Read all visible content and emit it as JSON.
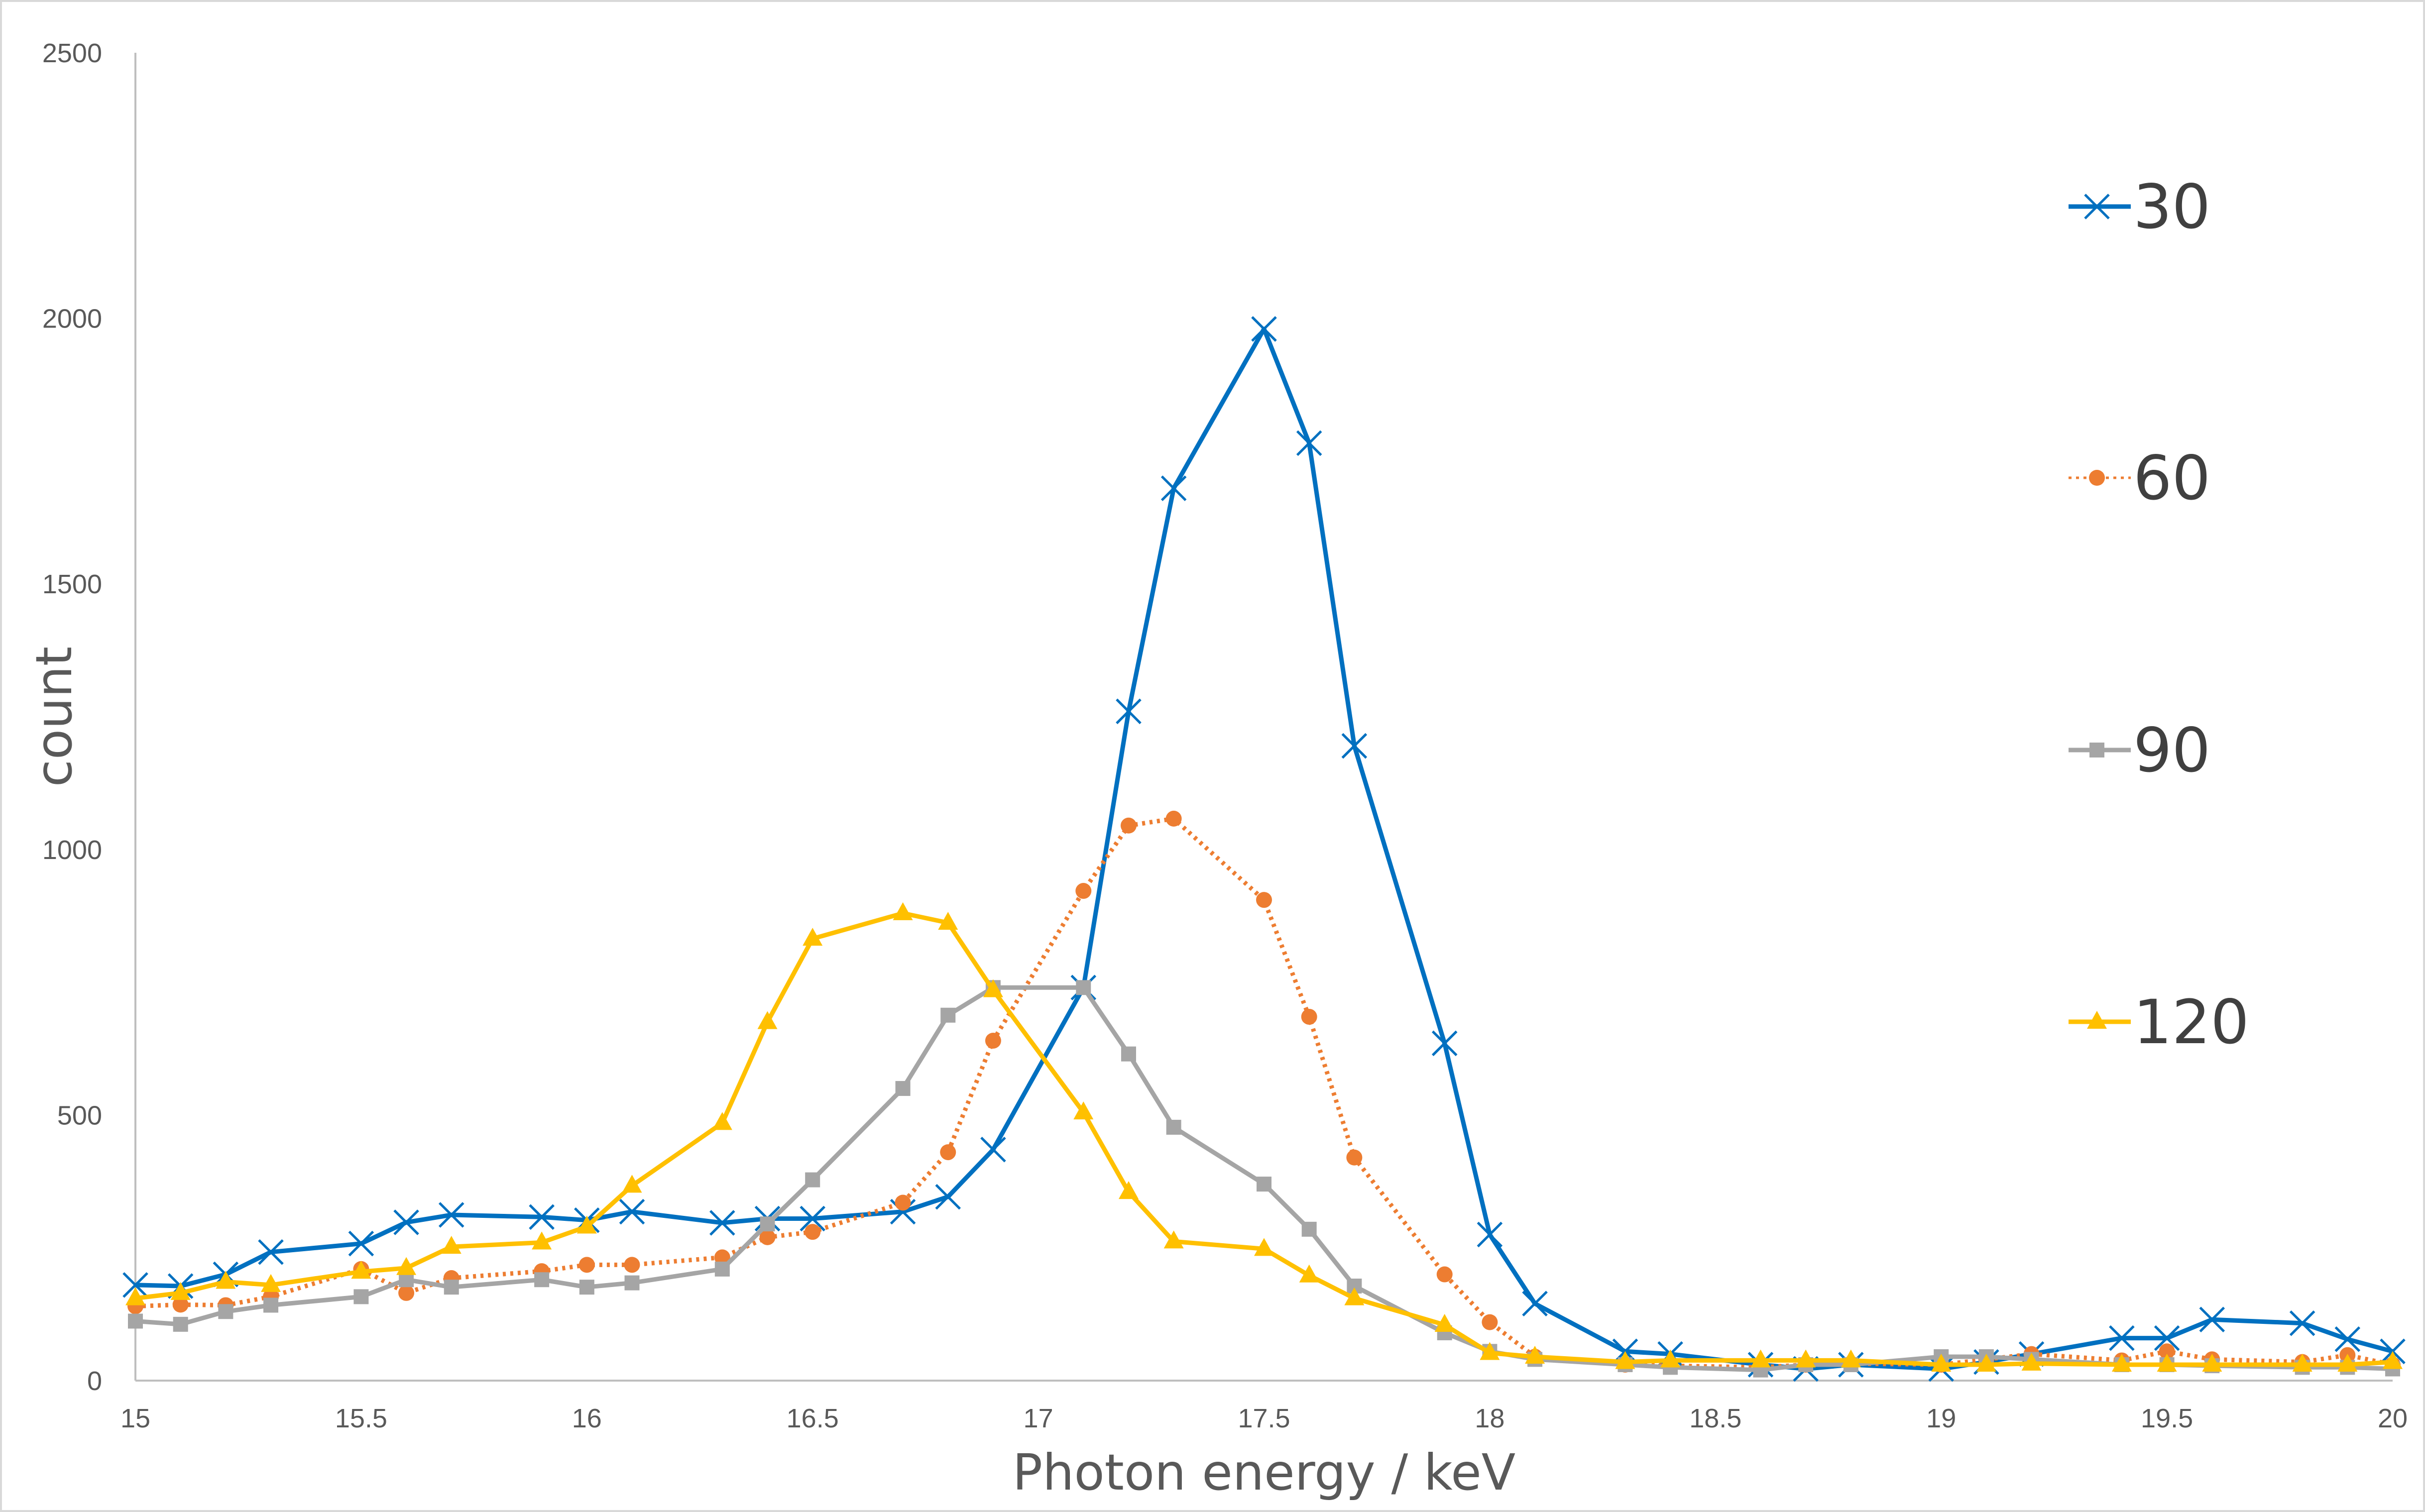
{
  "chart_data": {
    "type": "line",
    "title": "",
    "xlabel": "Photon energy / keV",
    "ylabel": "count",
    "xlim": [
      15,
      20
    ],
    "ylim": [
      0,
      2500
    ],
    "x_ticks": [
      "15",
      "15.5",
      "16",
      "16.5",
      "17",
      "17.5",
      "18",
      "18.5",
      "19",
      "19.5",
      "20"
    ],
    "y_ticks": [
      "0",
      "500",
      "1000",
      "1500",
      "2000",
      "2500"
    ],
    "grid": false,
    "legend_position": "right",
    "series": [
      {
        "name": "30",
        "color": "#0070c0",
        "marker": "x",
        "line_style": "solid",
        "x": [
          15,
          15.1,
          15.2,
          15.3,
          15.5,
          15.6,
          15.7,
          15.9,
          16,
          16.1,
          16.3,
          16.4,
          16.5,
          16.7,
          16.8,
          16.9,
          17.1,
          17.2,
          17.3,
          17.5,
          17.6,
          17.7,
          17.9,
          18,
          18.1,
          18.3,
          18.4,
          18.6,
          18.7,
          18.8,
          19,
          19.1,
          19.2,
          19.4,
          19.5,
          19.6,
          19.8,
          19.9,
          20
        ],
        "y": [
          180,
          178,
          200,
          242,
          258,
          298,
          312,
          308,
          302,
          318,
          297,
          305,
          305,
          318,
          346,
          435,
          740,
          1260,
          1680,
          1980,
          1765,
          1195,
          635,
          275,
          145,
          55,
          50,
          30,
          22,
          30,
          22,
          35,
          50,
          80,
          80,
          115,
          108,
          78,
          55
        ]
      },
      {
        "name": "60",
        "color": "#ed7d31",
        "marker": "circle",
        "line_style": "dotted",
        "x": [
          15,
          15.1,
          15.2,
          15.3,
          15.5,
          15.6,
          15.7,
          15.9,
          16,
          16.1,
          16.3,
          16.4,
          16.5,
          16.7,
          16.8,
          16.9,
          17.1,
          17.2,
          17.3,
          17.5,
          17.6,
          17.7,
          17.9,
          18,
          18.1,
          18.3,
          18.4,
          18.6,
          18.7,
          18.8,
          19,
          19.1,
          19.2,
          19.4,
          19.5,
          19.6,
          19.8,
          19.9,
          20
        ],
        "y": [
          140,
          143,
          142,
          158,
          210,
          165,
          193,
          206,
          218,
          218,
          232,
          270,
          280,
          335,
          430,
          640,
          922,
          1045,
          1058,
          905,
          685,
          420,
          200,
          110,
          45,
          30,
          28,
          25,
          30,
          32,
          30,
          40,
          50,
          38,
          55,
          40,
          35,
          48,
          30
        ]
      },
      {
        "name": "90",
        "color": "#a5a5a5",
        "marker": "square",
        "line_style": "solid",
        "x": [
          15,
          15.1,
          15.2,
          15.3,
          15.5,
          15.6,
          15.7,
          15.9,
          16,
          16.1,
          16.3,
          16.4,
          16.5,
          16.7,
          16.8,
          16.9,
          17.1,
          17.2,
          17.3,
          17.5,
          17.6,
          17.7,
          17.9,
          18,
          18.1,
          18.3,
          18.4,
          18.6,
          18.7,
          18.8,
          19,
          19.1,
          19.2,
          19.4,
          19.5,
          19.6,
          19.8,
          19.9,
          20
        ],
        "y": [
          112,
          106,
          130,
          142,
          158,
          190,
          176,
          190,
          176,
          184,
          210,
          295,
          378,
          550,
          688,
          740,
          740,
          615,
          477,
          370,
          285,
          178,
          90,
          55,
          40,
          30,
          25,
          20,
          30,
          30,
          45,
          45,
          40,
          30,
          30,
          28,
          25,
          25,
          22
        ]
      },
      {
        "name": "120",
        "color": "#ffc000",
        "marker": "triangle",
        "line_style": "solid",
        "x": [
          15,
          15.1,
          15.2,
          15.3,
          15.5,
          15.6,
          15.7,
          15.9,
          16,
          16.1,
          16.3,
          16.4,
          16.5,
          16.7,
          16.8,
          16.9,
          17.1,
          17.2,
          17.3,
          17.5,
          17.6,
          17.7,
          17.9,
          18,
          18.1,
          18.3,
          18.4,
          18.6,
          18.7,
          18.8,
          19,
          19.1,
          19.2,
          19.4,
          19.5,
          19.6,
          19.8,
          19.9,
          20
        ],
        "y": [
          155,
          165,
          186,
          180,
          205,
          212,
          252,
          260,
          290,
          367,
          485,
          675,
          832,
          880,
          862,
          735,
          505,
          355,
          262,
          248,
          198,
          155,
          105,
          52,
          45,
          35,
          38,
          38,
          38,
          38,
          30,
          30,
          32,
          30,
          30,
          30,
          30,
          30,
          35
        ]
      }
    ]
  }
}
